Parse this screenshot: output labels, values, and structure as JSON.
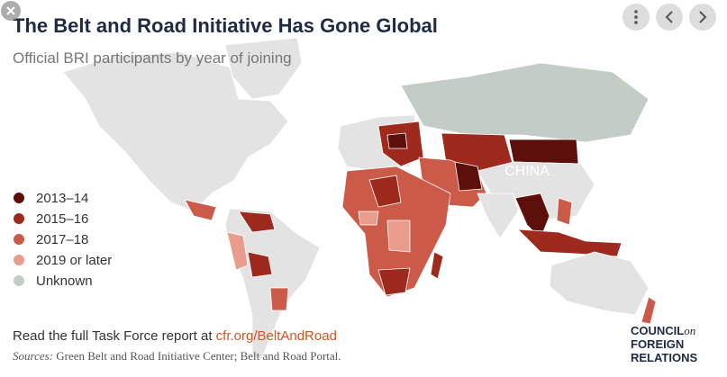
{
  "header": {
    "title": "The Belt and Road Initiative Has Gone Global",
    "subtitle": "Official BRI participants by year of joining"
  },
  "legend": [
    {
      "label": "2013–14",
      "color": "#5c0f0b"
    },
    {
      "label": "2015–16",
      "color": "#9e2a1e"
    },
    {
      "label": "2017–18",
      "color": "#cc5a48"
    },
    {
      "label": "2019 or later",
      "color": "#ea9c8c"
    },
    {
      "label": "Unknown",
      "color": "#c4ccc6"
    }
  ],
  "map_label": "CHINA",
  "footer": {
    "prefix": "Read the full Task Force report at",
    "link": "cfr.org/BeltAndRoad",
    "sources_label": "Sources:",
    "sources": "Green Belt and Road Initiative Center; Belt and Road Portal."
  },
  "logo": [
    "COUNCIL",
    "on",
    "FOREIGN",
    "RELATIONS"
  ]
}
